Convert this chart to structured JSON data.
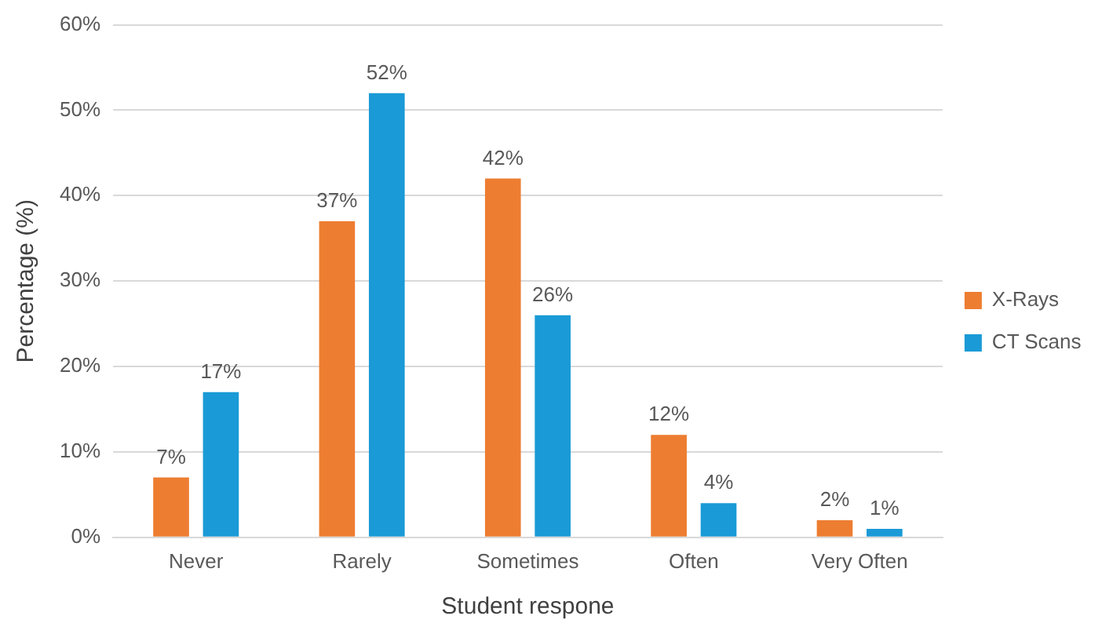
{
  "chart_data": {
    "type": "bar",
    "xlabel": "Student respone",
    "ylabel": "Percentage (%)",
    "categories": [
      "Never",
      "Rarely",
      "Sometimes",
      "Often",
      "Very Often"
    ],
    "series": [
      {
        "name": "X-Rays",
        "color": "#ed7d31",
        "values": [
          7,
          37,
          42,
          12,
          2
        ],
        "value_labels": [
          "7%",
          "37%",
          "42%",
          "12%",
          "2%"
        ]
      },
      {
        "name": "CT Scans",
        "color": "#1a9ad6",
        "values": [
          17,
          52,
          26,
          4,
          1
        ],
        "value_labels": [
          "17%",
          "52%",
          "26%",
          "4%",
          "1%"
        ]
      }
    ],
    "ylim": [
      0,
      60
    ],
    "yticks": [
      {
        "value": 0,
        "label": "0%"
      },
      {
        "value": 10,
        "label": "10%"
      },
      {
        "value": 20,
        "label": "20%"
      },
      {
        "value": 30,
        "label": "30%"
      },
      {
        "value": 40,
        "label": "40%"
      },
      {
        "value": 50,
        "label": "50%"
      },
      {
        "value": 60,
        "label": "60%"
      }
    ],
    "grid": "y",
    "legend": "right"
  }
}
